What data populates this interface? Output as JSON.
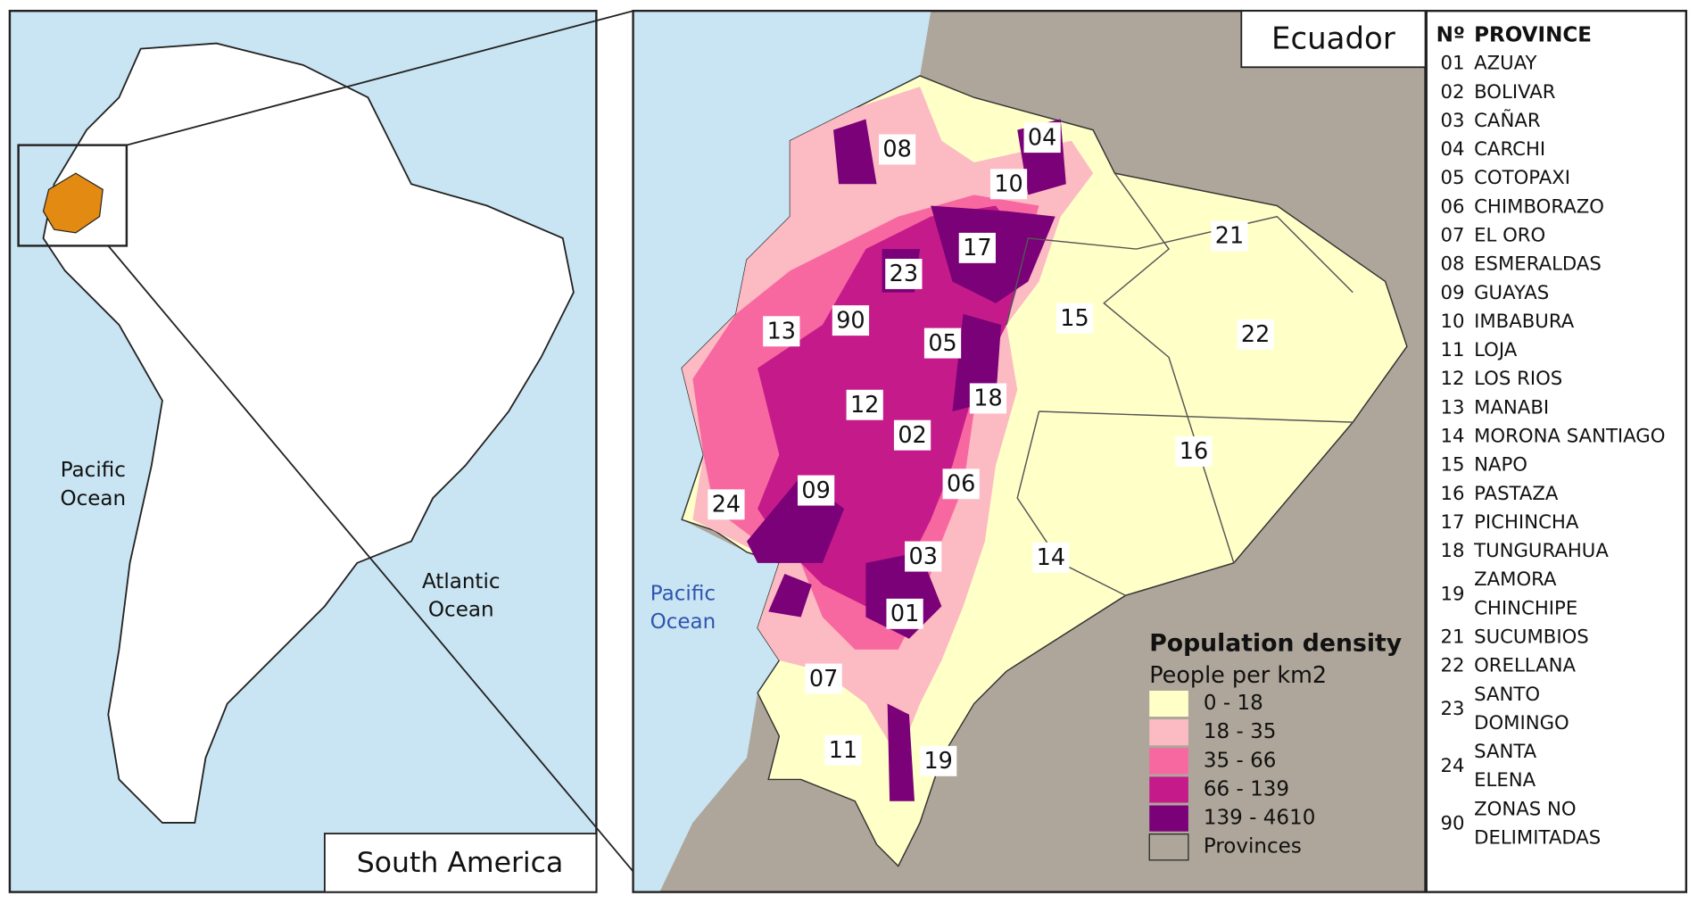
{
  "inset": {
    "title": "South America",
    "ocean_labels": [
      [
        "Pacific",
        "Ocean"
      ],
      [
        "Atlantic",
        "Ocean"
      ]
    ]
  },
  "main": {
    "title": "Ecuador",
    "ocean_label": [
      "Pacific",
      "Ocean"
    ],
    "province_labels": [
      "08",
      "04",
      "10",
      "17",
      "21",
      "23",
      "15",
      "22",
      "13",
      "90",
      "05",
      "18",
      "12",
      "02",
      "16",
      "06",
      "24",
      "09",
      "03",
      "14",
      "01",
      "07",
      "11",
      "19"
    ]
  },
  "legend": {
    "title": "Population density",
    "subtitle": "People per km2",
    "classes": [
      {
        "label": "0 - 18",
        "color": "#ffffc8"
      },
      {
        "label": "18 - 35",
        "color": "#fcbac3"
      },
      {
        "label": "35 - 66",
        "color": "#f768a1"
      },
      {
        "label": "66 - 139",
        "color": "#c51b8a"
      },
      {
        "label": "139 - 4610",
        "color": "#7a0177"
      }
    ],
    "provinces_label": "Provinces"
  },
  "province_list": {
    "header": {
      "number": "Nº",
      "name": "PROVINCE"
    },
    "rows": [
      {
        "no": "01",
        "name": [
          "AZUAY"
        ]
      },
      {
        "no": "02",
        "name": [
          "BOLIVAR"
        ]
      },
      {
        "no": "03",
        "name": [
          "CAÑAR"
        ]
      },
      {
        "no": "04",
        "name": [
          "CARCHI"
        ]
      },
      {
        "no": "05",
        "name": [
          "COTOPAXI"
        ]
      },
      {
        "no": "06",
        "name": [
          "CHIMBORAZO"
        ]
      },
      {
        "no": "07",
        "name": [
          "EL ORO"
        ]
      },
      {
        "no": "08",
        "name": [
          "ESMERALDAS"
        ]
      },
      {
        "no": "09",
        "name": [
          "GUAYAS"
        ]
      },
      {
        "no": "10",
        "name": [
          "IMBABURA"
        ]
      },
      {
        "no": "11",
        "name": [
          "LOJA"
        ]
      },
      {
        "no": "12",
        "name": [
          "LOS RIOS"
        ]
      },
      {
        "no": "13",
        "name": [
          "MANABI"
        ]
      },
      {
        "no": "14",
        "name": [
          "MORONA SANTIAGO"
        ]
      },
      {
        "no": "15",
        "name": [
          "NAPO"
        ]
      },
      {
        "no": "16",
        "name": [
          "PASTAZA"
        ]
      },
      {
        "no": "17",
        "name": [
          "PICHINCHA"
        ]
      },
      {
        "no": "18",
        "name": [
          "TUNGURAHUA"
        ]
      },
      {
        "no": "19",
        "name": [
          "ZAMORA",
          "CHINCHIPE"
        ]
      },
      {
        "no": "21",
        "name": [
          "SUCUMBIOS"
        ]
      },
      {
        "no": "22",
        "name": [
          "ORELLANA"
        ]
      },
      {
        "no": "23",
        "name": [
          "SANTO",
          "DOMINGO"
        ]
      },
      {
        "no": "24",
        "name": [
          "SANTA",
          "ELENA"
        ]
      },
      {
        "no": "90",
        "name": [
          "ZONAS NO",
          "DELIMITADAS"
        ]
      }
    ]
  }
}
